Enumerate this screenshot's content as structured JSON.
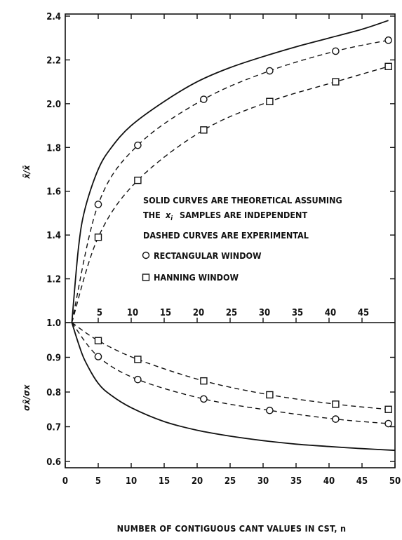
{
  "chart_data": [
    {
      "type": "line",
      "panel": "upper",
      "ylabel": "x̃/x̄",
      "xlim": [
        0,
        50
      ],
      "ylim": [
        0.95,
        2.4
      ],
      "y_ticks": [
        1.0,
        1.2,
        1.4,
        1.6,
        1.8,
        2.0,
        2.2,
        2.4
      ],
      "y_tick_labels": [
        "1.0",
        "1.2",
        "1.4",
        "1.6",
        "1.8",
        "2.0",
        "2.2",
        "2.4"
      ],
      "x_ticks": [
        5,
        10,
        15,
        20,
        25,
        30,
        35,
        40,
        45
      ],
      "x_tick_labels": [
        "5",
        "10",
        "15",
        "20",
        "25",
        "30",
        "35",
        "40",
        "45"
      ],
      "series": [
        {
          "name": "SOLID CURVES ARE THEORETICAL ASSUMING THE X_i SAMPLES ARE INDEPENDENT",
          "style": "solid",
          "marker": "none",
          "x": [
            1,
            2,
            3,
            5,
            7,
            10,
            15,
            20,
            25,
            30,
            35,
            40,
            45,
            49
          ],
          "y": [
            1.0,
            1.34,
            1.52,
            1.7,
            1.8,
            1.9,
            2.01,
            2.1,
            2.165,
            2.215,
            2.26,
            2.3,
            2.34,
            2.38
          ]
        },
        {
          "name": "RECTANGULAR WINDOW",
          "style": "dashed",
          "marker": "circle",
          "x": [
            1,
            5,
            11,
            21,
            31,
            41,
            49
          ],
          "y": [
            1.0,
            1.54,
            1.81,
            2.02,
            2.15,
            2.24,
            2.29
          ]
        },
        {
          "name": "HANNING WINDOW",
          "style": "dashed",
          "marker": "square",
          "x": [
            1,
            5,
            11,
            21,
            31,
            41,
            49
          ],
          "y": [
            1.0,
            1.39,
            1.65,
            1.88,
            2.01,
            2.1,
            2.17
          ]
        }
      ],
      "annotations": [
        "SOLID CURVES ARE THEORETICAL ASSUMING",
        "THE",
        "SAMPLES ARE INDEPENDENT",
        "DASHED CURVES ARE EXPERIMENTAL",
        "RECTANGULAR WINDOW",
        "HANNING WINDOW"
      ]
    },
    {
      "type": "line",
      "panel": "lower",
      "ylabel": "σx̃/σx",
      "xlabel": "NUMBER OF CONTIGUOUS CANT VALUES IN CST, n",
      "xlim": [
        0,
        50
      ],
      "ylim": [
        0.6,
        1.0
      ],
      "y_ticks": [
        0.6,
        0.7,
        0.8,
        0.9,
        1.0
      ],
      "y_tick_labels": [
        "0.6",
        "0.7",
        "0.8",
        "0.9",
        "1.0"
      ],
      "x_ticks": [
        0,
        5,
        10,
        15,
        20,
        25,
        30,
        35,
        40,
        45,
        50
      ],
      "x_tick_labels": [
        "0",
        "5",
        "10",
        "15",
        "20",
        "25",
        "30",
        "35",
        "40",
        "45",
        "50"
      ],
      "series": [
        {
          "name": "theoretical",
          "style": "solid",
          "marker": "none",
          "x": [
            1,
            2,
            3,
            5,
            7,
            10,
            15,
            20,
            25,
            30,
            35,
            40,
            45,
            50
          ],
          "y": [
            1.0,
            0.94,
            0.89,
            0.825,
            0.79,
            0.755,
            0.715,
            0.69,
            0.673,
            0.66,
            0.65,
            0.643,
            0.637,
            0.632
          ]
        },
        {
          "name": "RECTANGULAR WINDOW",
          "style": "dashed",
          "marker": "circle",
          "x": [
            1,
            5,
            11,
            21,
            31,
            41,
            49
          ],
          "y": [
            1.0,
            0.902,
            0.836,
            0.78,
            0.747,
            0.722,
            0.709
          ]
        },
        {
          "name": "HANNING WINDOW",
          "style": "dashed",
          "marker": "square",
          "x": [
            1,
            5,
            11,
            21,
            31,
            41,
            49
          ],
          "y": [
            1.0,
            0.948,
            0.894,
            0.832,
            0.792,
            0.765,
            0.75
          ]
        }
      ]
    }
  ]
}
